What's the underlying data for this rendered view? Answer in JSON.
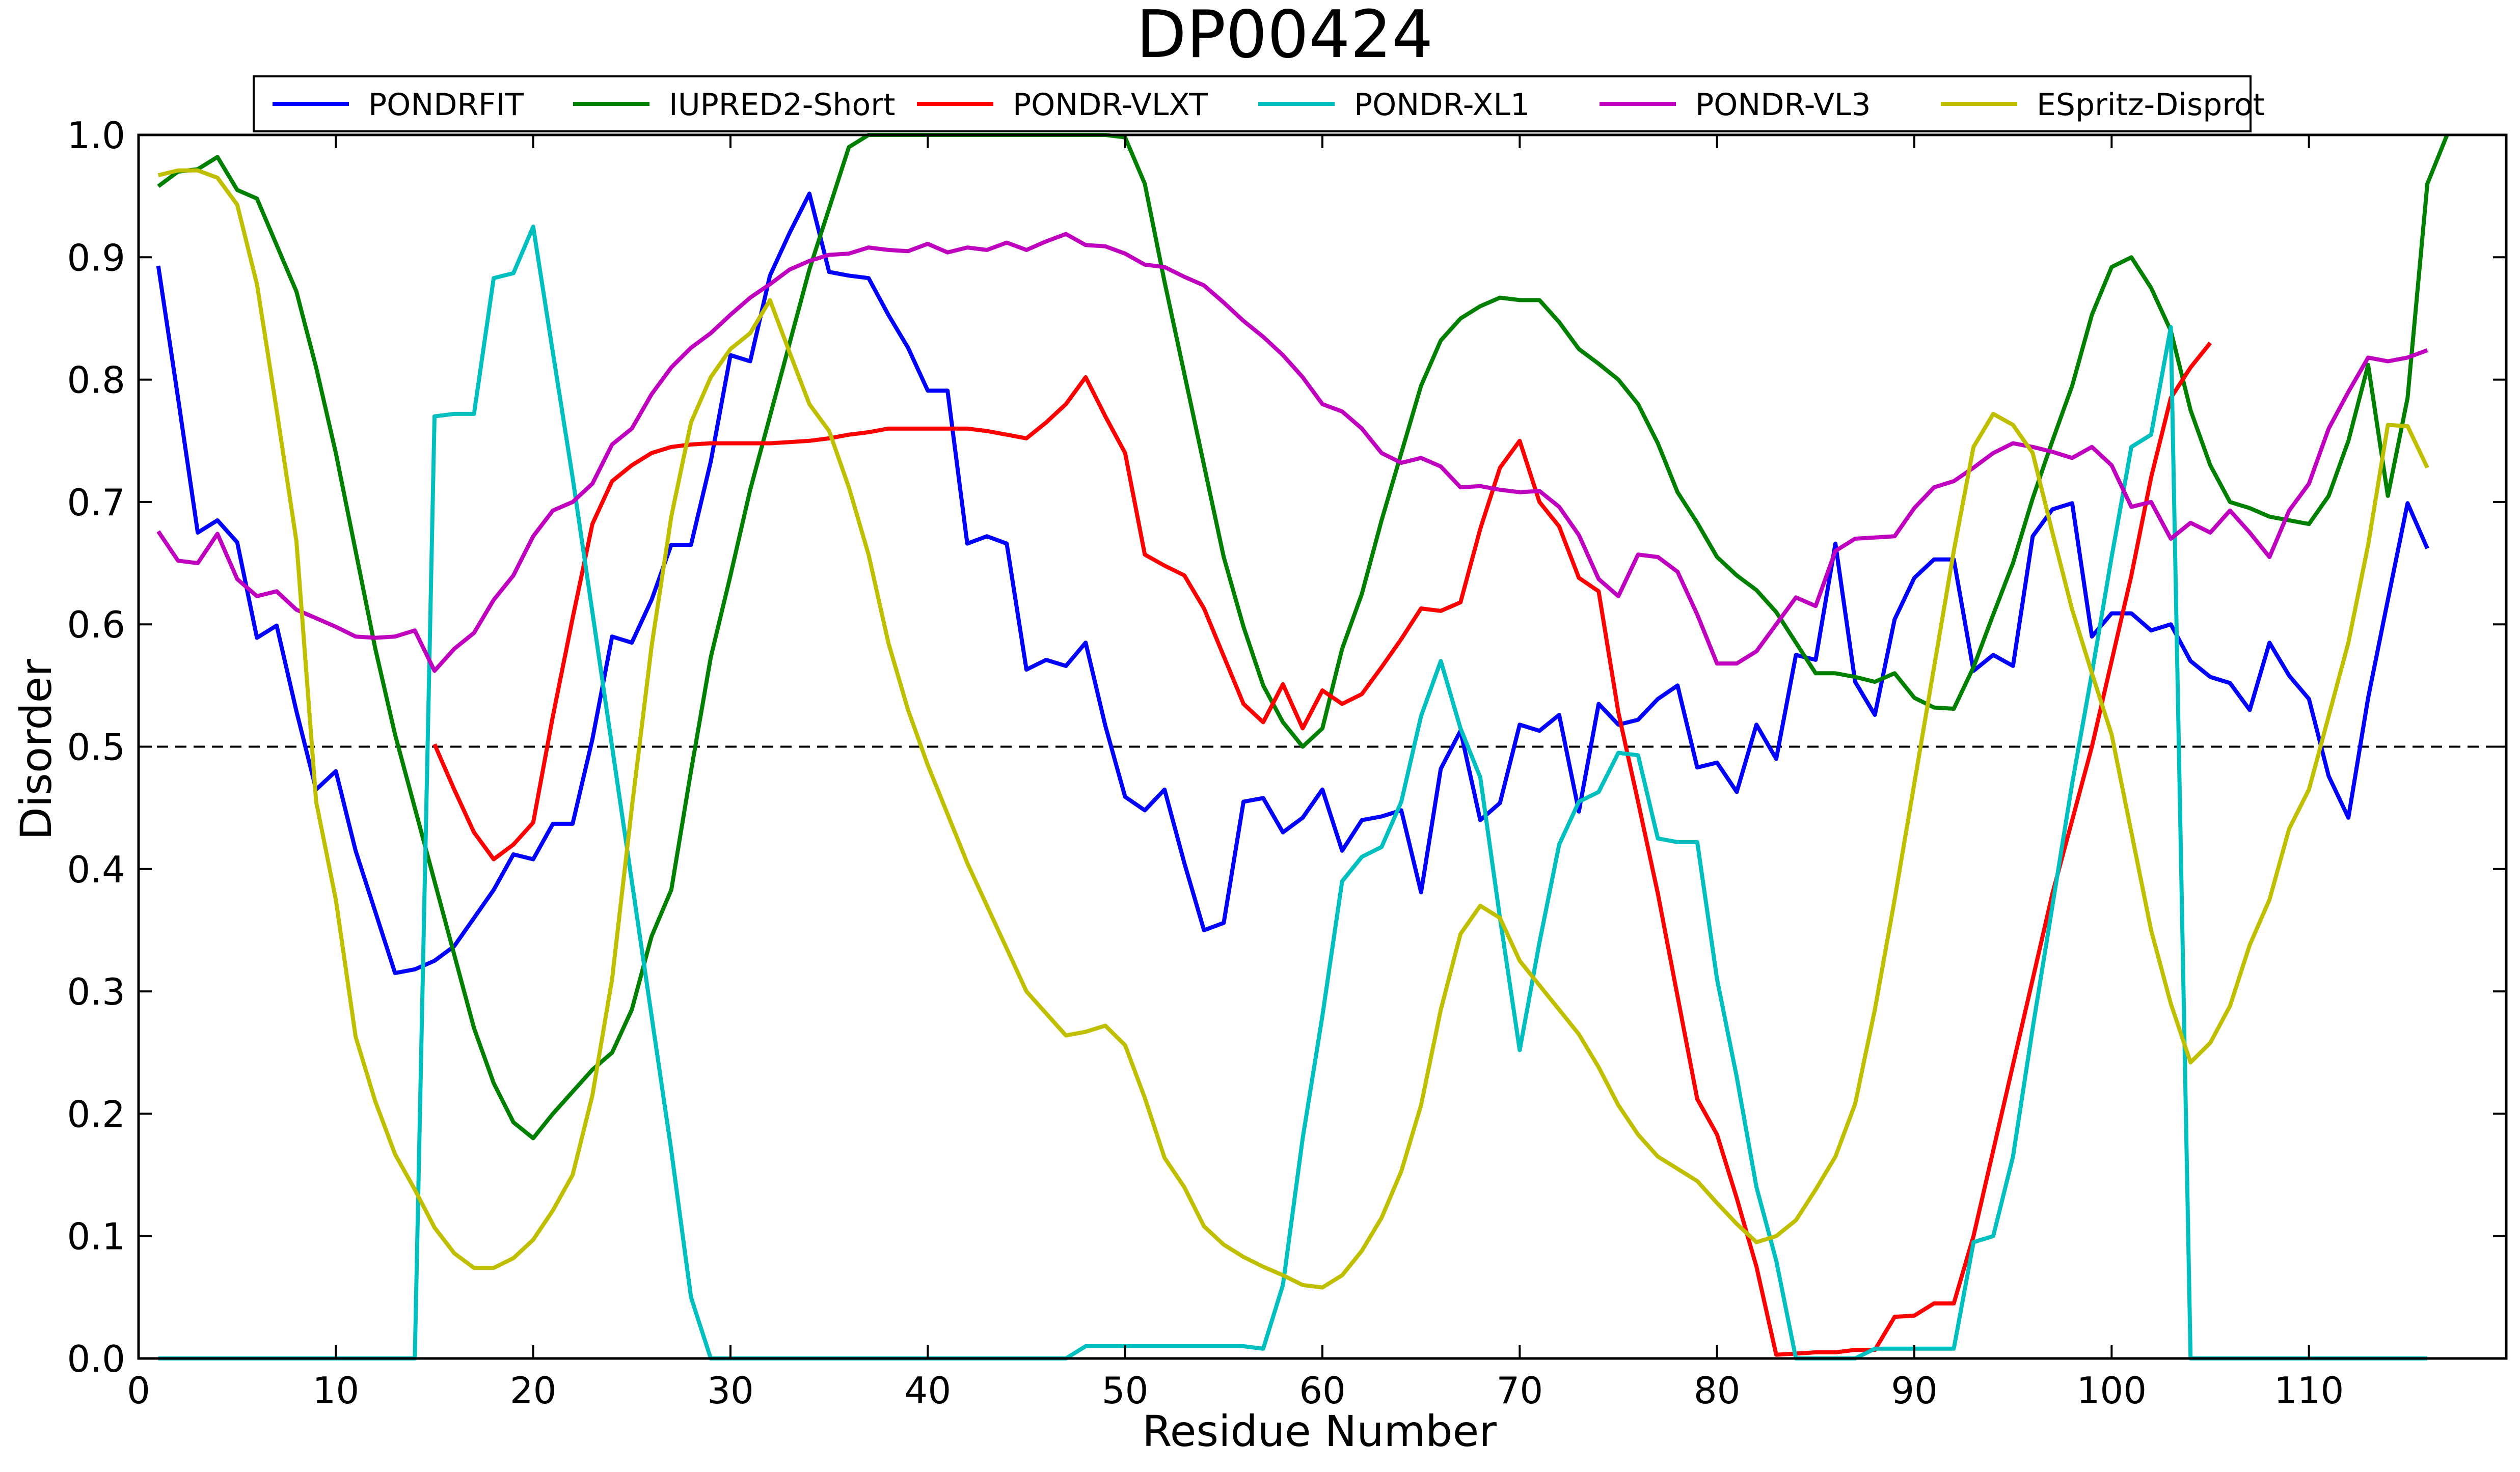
{
  "chart_data": {
    "type": "line",
    "title": "DP00424",
    "xlabel": "Residue Number",
    "ylabel": "Disorder",
    "xlim": [
      0,
      120
    ],
    "ylim": [
      0,
      1.0
    ],
    "x_ticks": [
      0,
      10,
      20,
      30,
      40,
      50,
      60,
      70,
      80,
      90,
      100,
      110
    ],
    "x_tick_labels": [
      "0",
      "10",
      "20",
      "30",
      "40",
      "50",
      "60",
      "70",
      "80",
      "90",
      "100",
      "110"
    ],
    "y_ticks": [
      0,
      0.1,
      0.2,
      0.3,
      0.4,
      0.5,
      0.6,
      0.7,
      0.8,
      0.9,
      1.0
    ],
    "y_tick_labels": [
      "0.0",
      "0.1",
      "0.2",
      "0.3",
      "0.4",
      "0.5",
      "0.6",
      "0.7",
      "0.8",
      "0.9",
      "1.0"
    ],
    "grid": false,
    "legend_position": "top-center",
    "threshold": 0.5,
    "series": [
      {
        "name": "PONDRFIT",
        "color": "#0000ff",
        "values": [
          0.893,
          0.785,
          0.675,
          0.685,
          0.667,
          0.589,
          0.599,
          0.529,
          0.465,
          0.48,
          0.415,
          0.365,
          0.315,
          0.318,
          0.325,
          0.337,
          0.36,
          0.383,
          0.412,
          0.408,
          0.437,
          0.437,
          0.506,
          0.59,
          0.585,
          0.62,
          0.665,
          0.665,
          0.733,
          0.82,
          0.815,
          0.885,
          0.92,
          0.952,
          0.888,
          0.885,
          0.883,
          0.853,
          0.826,
          0.791,
          0.791,
          0.666,
          0.672,
          0.666,
          0.563,
          0.571,
          0.566,
          0.585,
          0.517,
          0.459,
          0.448,
          0.465,
          0.405,
          0.35,
          0.356,
          0.455,
          0.458,
          0.43,
          0.442,
          0.465,
          0.415,
          0.44,
          0.443,
          0.448,
          0.381,
          0.482,
          0.513,
          0.44,
          0.454,
          0.518,
          0.513,
          0.526,
          0.447,
          0.535,
          0.518,
          0.522,
          0.539,
          0.55,
          0.483,
          0.487,
          0.463,
          0.518,
          0.49,
          0.575,
          0.571,
          0.666,
          0.553,
          0.526,
          0.604,
          0.638,
          0.653,
          0.653,
          0.562,
          0.575,
          0.566,
          0.672,
          0.694,
          0.699,
          0.59,
          0.609,
          0.609,
          0.595,
          0.6,
          0.57,
          0.557,
          0.552,
          0.53,
          0.585,
          0.558,
          0.539,
          0.476,
          0.442,
          0.54,
          0.62,
          0.699,
          0.662
        ]
      },
      {
        "name": "IUPRED2-Short",
        "color": "#008000",
        "values": [
          0.958,
          0.97,
          0.972,
          0.982,
          0.955,
          0.948,
          0.91,
          0.872,
          0.81,
          0.74,
          0.66,
          0.58,
          0.51,
          0.45,
          0.39,
          0.33,
          0.27,
          0.225,
          0.193,
          0.18,
          0.2,
          0.218,
          0.236,
          0.25,
          0.285,
          0.345,
          0.383,
          0.48,
          0.573,
          0.64,
          0.71,
          0.77,
          0.83,
          0.89,
          0.94,
          0.99,
          1.0,
          1.0,
          1.0,
          1.0,
          1.0,
          1.0,
          1.0,
          1.0,
          1.0,
          1.0,
          1.0,
          1.0,
          1.0,
          0.998,
          0.96,
          0.88,
          0.805,
          0.73,
          0.655,
          0.598,
          0.55,
          0.52,
          0.5,
          0.515,
          0.58,
          0.625,
          0.685,
          0.74,
          0.795,
          0.832,
          0.85,
          0.86,
          0.867,
          0.865,
          0.865,
          0.847,
          0.825,
          0.813,
          0.8,
          0.78,
          0.748,
          0.708,
          0.683,
          0.655,
          0.64,
          0.628,
          0.61,
          0.585,
          0.56,
          0.56,
          0.557,
          0.553,
          0.56,
          0.54,
          0.532,
          0.531,
          0.565,
          0.608,
          0.65,
          0.703,
          0.75,
          0.795,
          0.853,
          0.892,
          0.9,
          0.875,
          0.84,
          0.775,
          0.73,
          0.7,
          0.695,
          0.688,
          0.685,
          0.682,
          0.705,
          0.75,
          0.812,
          0.705,
          0.785,
          0.96,
          1.0
        ]
      },
      {
        "name": "PONDR-VLXT",
        "color": "#ff0000",
        "values": [
          null,
          null,
          null,
          null,
          null,
          null,
          null,
          null,
          null,
          null,
          null,
          null,
          null,
          null,
          0.502,
          0.465,
          0.43,
          0.408,
          0.42,
          0.438,
          0.525,
          0.605,
          0.682,
          0.717,
          0.73,
          0.74,
          0.745,
          0.747,
          0.748,
          0.748,
          0.748,
          0.748,
          0.749,
          0.75,
          0.752,
          0.755,
          0.757,
          0.76,
          0.76,
          0.76,
          0.76,
          0.76,
          0.758,
          0.755,
          0.752,
          0.765,
          0.78,
          0.802,
          0.77,
          0.74,
          0.657,
          0.648,
          0.64,
          0.613,
          0.574,
          0.535,
          0.52,
          0.551,
          0.515,
          0.546,
          0.535,
          0.543,
          0.565,
          0.588,
          0.613,
          0.611,
          0.618,
          0.678,
          0.728,
          0.75,
          0.7,
          0.68,
          0.638,
          0.627,
          0.528,
          0.455,
          0.38,
          0.296,
          0.212,
          0.183,
          0.131,
          0.075,
          0.003,
          0.004,
          0.005,
          0.005,
          0.007,
          0.007,
          0.034,
          0.035,
          0.045,
          0.045,
          0.1,
          0.17,
          0.24,
          0.31,
          0.38,
          0.44,
          0.5,
          0.57,
          0.64,
          0.72,
          0.785,
          0.81,
          0.83,
          null,
          null,
          null,
          null,
          null,
          null,
          null,
          null,
          null,
          null,
          null
        ]
      },
      {
        "name": "PONDR-XL1",
        "color": "#00bfbf",
        "values": [
          0.0,
          0.0,
          0.0,
          0.0,
          0.0,
          0.0,
          0.0,
          0.0,
          0.0,
          0.0,
          0.0,
          0.0,
          0.0,
          0.0,
          0.77,
          0.772,
          0.772,
          0.883,
          0.887,
          0.925,
          0.822,
          0.72,
          0.61,
          0.5,
          0.39,
          0.28,
          0.17,
          0.05,
          0.0,
          0.0,
          0.0,
          0.0,
          0.0,
          0.0,
          0.0,
          0.0,
          0.0,
          0.0,
          0.0,
          0.0,
          0.0,
          0.0,
          0.0,
          0.0,
          0.0,
          0.0,
          0.0,
          0.01,
          0.01,
          0.01,
          0.01,
          0.01,
          0.01,
          0.01,
          0.01,
          0.01,
          0.008,
          0.06,
          0.18,
          0.28,
          0.39,
          0.41,
          0.418,
          0.455,
          0.525,
          0.57,
          0.515,
          0.475,
          0.36,
          0.252,
          0.34,
          0.42,
          0.455,
          0.463,
          0.495,
          0.493,
          0.425,
          0.422,
          0.422,
          0.31,
          0.23,
          0.14,
          0.08,
          0.0,
          0.0,
          0.0,
          0.0,
          0.008,
          0.008,
          0.008,
          0.008,
          0.008,
          0.095,
          0.1,
          0.165,
          0.27,
          0.37,
          0.47,
          0.56,
          0.655,
          0.745,
          0.755,
          0.843,
          0.0,
          0.0,
          0.0,
          0.0,
          0.0,
          0.0,
          0.0,
          0.0,
          0.0,
          0.0,
          0.0,
          0.0,
          0.0
        ]
      },
      {
        "name": "PONDR-VL3",
        "color": "#bf00bf",
        "values": [
          0.676,
          0.652,
          0.65,
          0.674,
          0.637,
          0.623,
          0.627,
          0.612,
          0.605,
          0.598,
          0.59,
          0.589,
          0.59,
          0.595,
          0.562,
          0.58,
          0.593,
          0.62,
          0.64,
          0.672,
          0.693,
          0.7,
          0.715,
          0.747,
          0.76,
          0.788,
          0.81,
          0.826,
          0.838,
          0.853,
          0.867,
          0.878,
          0.89,
          0.897,
          0.902,
          0.903,
          0.908,
          0.906,
          0.905,
          0.911,
          0.904,
          0.908,
          0.906,
          0.912,
          0.906,
          0.913,
          0.919,
          0.91,
          0.909,
          0.903,
          0.894,
          0.892,
          0.884,
          0.877,
          0.863,
          0.848,
          0.835,
          0.82,
          0.802,
          0.78,
          0.774,
          0.76,
          0.74,
          0.732,
          0.736,
          0.729,
          0.712,
          0.713,
          0.71,
          0.708,
          0.709,
          0.696,
          0.673,
          0.637,
          0.623,
          0.657,
          0.655,
          0.643,
          0.608,
          0.568,
          0.568,
          0.578,
          0.6,
          0.622,
          0.615,
          0.66,
          0.67,
          0.671,
          0.672,
          0.695,
          0.712,
          0.717,
          0.728,
          0.74,
          0.748,
          0.745,
          0.741,
          0.736,
          0.745,
          0.73,
          0.696,
          0.7,
          0.67,
          0.683,
          0.675,
          0.693,
          0.675,
          0.655,
          0.693,
          0.715,
          0.76,
          0.79,
          0.818,
          0.815,
          0.818,
          0.824
        ]
      },
      {
        "name": "ESpritz-Disprot",
        "color": "#bfbf00",
        "values": [
          0.967,
          0.971,
          0.971,
          0.965,
          0.943,
          0.878,
          0.775,
          0.668,
          0.455,
          0.375,
          0.263,
          0.21,
          0.167,
          0.138,
          0.107,
          0.086,
          0.074,
          0.074,
          0.082,
          0.097,
          0.121,
          0.15,
          0.215,
          0.31,
          0.45,
          0.582,
          0.688,
          0.765,
          0.802,
          0.825,
          0.838,
          0.865,
          0.822,
          0.78,
          0.758,
          0.712,
          0.657,
          0.585,
          0.53,
          0.485,
          0.445,
          0.405,
          0.37,
          0.335,
          0.3,
          0.282,
          0.264,
          0.267,
          0.272,
          0.256,
          0.213,
          0.164,
          0.14,
          0.108,
          0.093,
          0.083,
          0.075,
          0.068,
          0.06,
          0.058,
          0.068,
          0.088,
          0.115,
          0.153,
          0.207,
          0.285,
          0.347,
          0.37,
          0.36,
          0.325,
          0.305,
          0.285,
          0.265,
          0.238,
          0.207,
          0.183,
          0.165,
          0.155,
          0.145,
          0.127,
          0.11,
          0.095,
          0.1,
          0.113,
          0.138,
          0.165,
          0.208,
          0.285,
          0.375,
          0.47,
          0.565,
          0.66,
          0.745,
          0.772,
          0.763,
          0.74,
          0.675,
          0.612,
          0.56,
          0.51,
          0.43,
          0.35,
          0.29,
          0.242,
          0.258,
          0.288,
          0.338,
          0.375,
          0.433,
          0.465,
          0.525,
          0.585,
          0.665,
          0.763,
          0.762,
          0.728
        ]
      }
    ]
  }
}
